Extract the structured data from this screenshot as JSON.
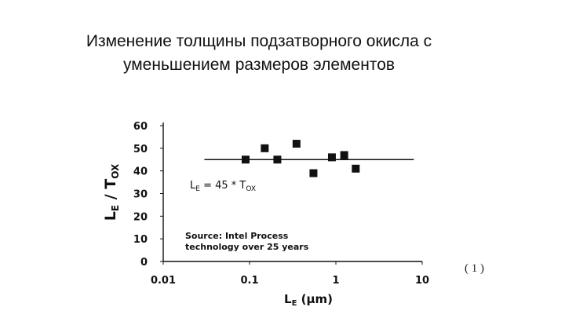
{
  "slide": {
    "title_line1": "Изменение толщины подзатворного окисла с",
    "title_line2": "уменьшением размеров элементов",
    "ref_label": "( 1 )"
  },
  "chart_data": {
    "type": "scatter",
    "xscale": "log",
    "xlim": [
      0.01,
      10
    ],
    "ylim": [
      0,
      60
    ],
    "x_ticks": [
      "0.01",
      "0.1",
      "1",
      "10"
    ],
    "y_ticks": [
      "0",
      "10",
      "20",
      "30",
      "40",
      "50",
      "60"
    ],
    "xlabel": "LE (μm)",
    "ylabel": "LE / TOX",
    "points": [
      {
        "x": 0.09,
        "y": 45
      },
      {
        "x": 0.15,
        "y": 50
      },
      {
        "x": 0.21,
        "y": 45
      },
      {
        "x": 0.35,
        "y": 52
      },
      {
        "x": 0.55,
        "y": 39
      },
      {
        "x": 0.9,
        "y": 46
      },
      {
        "x": 1.25,
        "y": 47
      },
      {
        "x": 1.7,
        "y": 41
      }
    ],
    "trend_line": {
      "y": 45,
      "x_range": [
        0.03,
        8
      ]
    },
    "equation": {
      "base": "L",
      "sub1": "E",
      "mid": " = 45 * T",
      "sub2": "OX"
    },
    "source_note": [
      "Source: Intel Process",
      "technology over 25 years"
    ],
    "grid": false
  }
}
